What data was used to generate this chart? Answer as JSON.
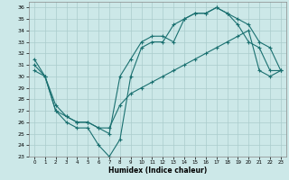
{
  "xlabel": "Humidex (Indice chaleur)",
  "xlim": [
    -0.5,
    23.5
  ],
  "ylim": [
    23,
    36.5
  ],
  "yticks": [
    23,
    24,
    25,
    26,
    27,
    28,
    29,
    30,
    31,
    32,
    33,
    34,
    35,
    36
  ],
  "xticks": [
    0,
    1,
    2,
    3,
    4,
    5,
    6,
    7,
    8,
    9,
    10,
    11,
    12,
    13,
    14,
    15,
    16,
    17,
    18,
    19,
    20,
    21,
    22,
    23
  ],
  "background_color": "#cce8e8",
  "grid_color": "#aacccc",
  "line_color": "#1a7070",
  "line1_x": [
    0,
    1,
    2,
    3,
    4,
    5,
    6,
    7,
    8,
    9,
    10,
    11,
    12,
    13,
    14,
    15,
    16,
    17,
    18,
    19,
    20,
    21,
    22,
    23
  ],
  "line1_y": [
    31.5,
    30.0,
    27.0,
    26.0,
    25.5,
    25.5,
    24.0,
    23.0,
    24.5,
    30.0,
    32.5,
    33.0,
    33.0,
    34.5,
    35.0,
    35.5,
    35.5,
    36.0,
    35.5,
    34.5,
    33.0,
    32.5,
    30.5,
    30.5
  ],
  "line2_x": [
    0,
    1,
    2,
    3,
    4,
    5,
    6,
    7,
    8,
    9,
    10,
    11,
    12,
    13,
    14,
    15,
    16,
    17,
    18,
    19,
    20,
    21,
    22,
    23
  ],
  "line2_y": [
    30.5,
    30.0,
    27.0,
    26.5,
    26.0,
    26.0,
    25.5,
    25.5,
    27.5,
    28.5,
    29.0,
    29.5,
    30.0,
    30.5,
    31.0,
    31.5,
    32.0,
    32.5,
    33.0,
    33.5,
    34.0,
    30.5,
    30.0,
    30.5
  ],
  "line3_x": [
    0,
    1,
    2,
    3,
    4,
    5,
    6,
    7,
    8,
    9,
    10,
    11,
    12,
    13,
    14,
    15,
    16,
    17,
    18,
    19,
    20,
    21,
    22,
    23
  ],
  "line3_y": [
    31.0,
    30.0,
    27.5,
    26.5,
    26.0,
    26.0,
    25.5,
    25.0,
    30.0,
    31.5,
    33.0,
    33.5,
    33.5,
    33.0,
    35.0,
    35.5,
    35.5,
    36.0,
    35.5,
    35.0,
    34.5,
    33.0,
    32.5,
    30.5
  ]
}
